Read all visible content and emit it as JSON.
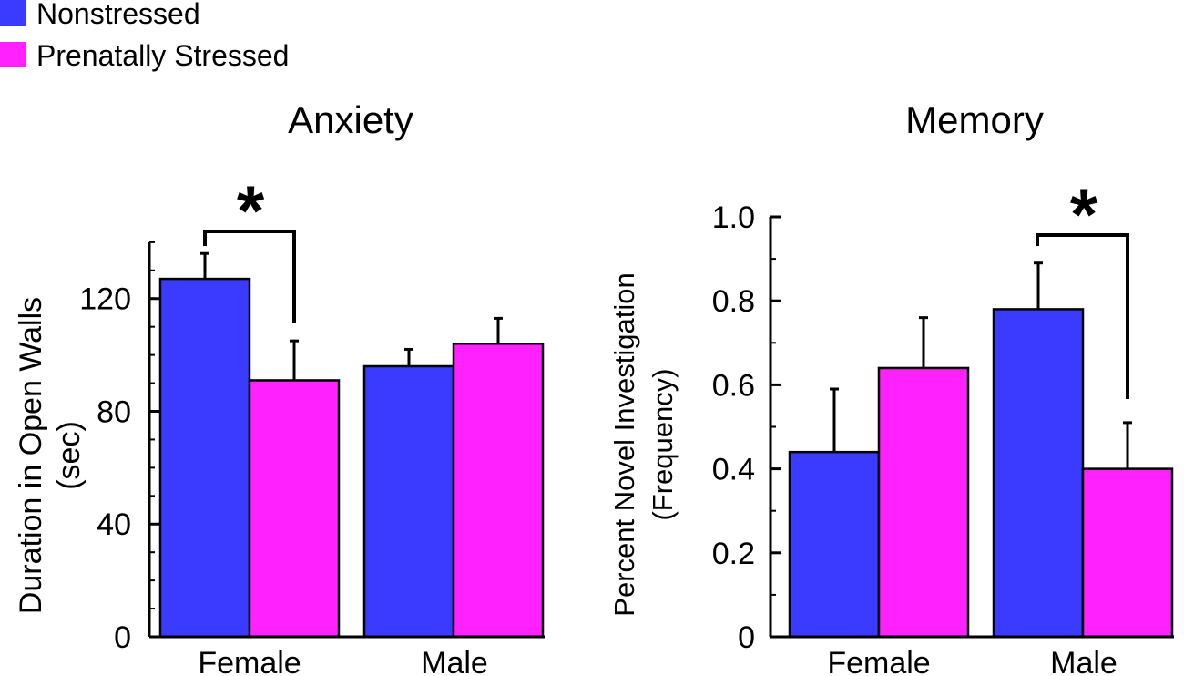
{
  "legend": {
    "items": [
      {
        "label": "Nonstressed",
        "color": "#3b3bff"
      },
      {
        "label": "Prenatally Stressed",
        "color": "#ff22ff"
      }
    ]
  },
  "chart_data": [
    {
      "type": "bar",
      "title": "Anxiety",
      "categories": [
        "Female",
        "Male"
      ],
      "series": [
        {
          "name": "Nonstressed",
          "values": [
            127,
            96
          ],
          "errors": [
            9,
            6
          ]
        },
        {
          "name": "Prenatally Stressed",
          "values": [
            91,
            104
          ],
          "errors": [
            14,
            9
          ]
        }
      ],
      "ylabel": "Duration in Open Walls",
      "ylabel2": "(sec)",
      "ylim": [
        0,
        140
      ],
      "yticks": [
        0,
        40,
        80,
        120
      ],
      "ytick_labels": [
        "0",
        "40",
        "80",
        "120"
      ],
      "minor_step": 10,
      "significance": {
        "category": "Female",
        "label": "*"
      }
    },
    {
      "type": "bar",
      "title": "Memory",
      "categories": [
        "Female",
        "Male"
      ],
      "series": [
        {
          "name": "Nonstressed",
          "values": [
            0.44,
            0.78
          ],
          "errors": [
            0.15,
            0.11
          ]
        },
        {
          "name": "Prenatally Stressed",
          "values": [
            0.64,
            0.4
          ],
          "errors": [
            0.12,
            0.11
          ]
        }
      ],
      "ylabel": "Percent Novel Investigation",
      "ylabel2": "(Frequency)",
      "ylim": [
        0,
        1.0
      ],
      "yticks": [
        0,
        0.2,
        0.4,
        0.6,
        0.8,
        1.0
      ],
      "ytick_labels": [
        "0",
        "0.2",
        "0.4",
        "0.6",
        "0.8",
        "1.0"
      ],
      "minor_step": 0.1,
      "significance": {
        "category": "Male",
        "label": "*"
      }
    }
  ]
}
